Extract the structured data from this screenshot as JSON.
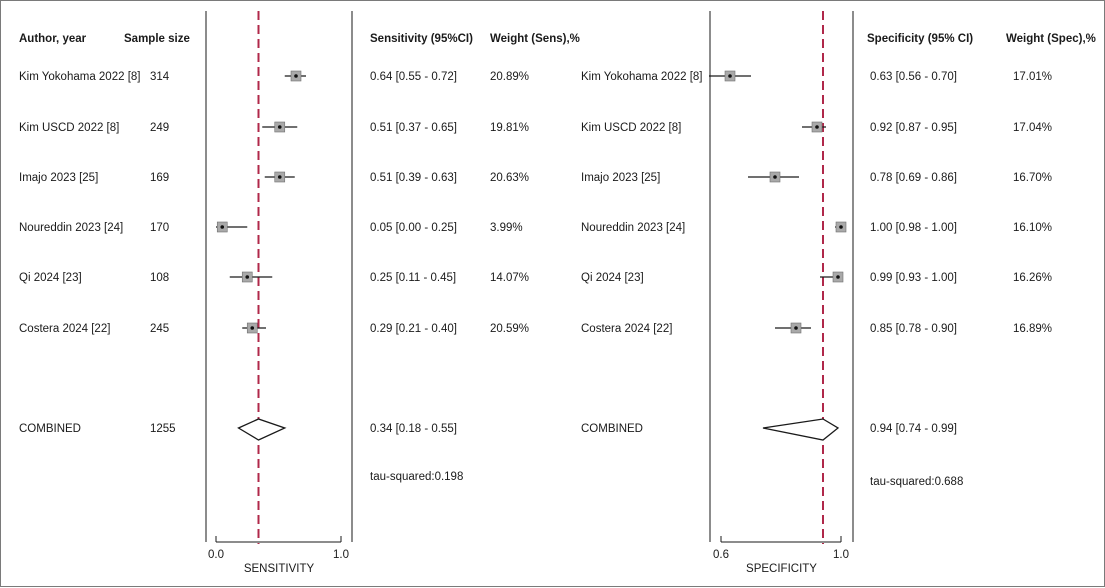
{
  "chart_data": [
    {
      "type": "forest",
      "metric": "sensitivity",
      "xlabel": "SENSITIVITY",
      "xticks": [
        "0.0",
        "1.0"
      ],
      "xlim": [
        0.0,
        1.0
      ],
      "reference_line": 0.34,
      "headers": {
        "author": "Author, year",
        "sample": "Sample size",
        "estimate": "Sensitivity (95%CI)",
        "weight": "Weight (Sens),%"
      },
      "studies": [
        {
          "author": "Kim Yokohama 2022 [8]",
          "n": "314",
          "est": 0.64,
          "lo": 0.55,
          "hi": 0.72,
          "label": "0.64 [0.55 - 0.72]",
          "weight": "20.89%"
        },
        {
          "author": "Kim USCD 2022 [8]",
          "n": "249",
          "est": 0.51,
          "lo": 0.37,
          "hi": 0.65,
          "label": "0.51 [0.37 - 0.65]",
          "weight": "19.81%"
        },
        {
          "author": "Imajo 2023 [25]",
          "n": "169",
          "est": 0.51,
          "lo": 0.39,
          "hi": 0.63,
          "label": "0.51 [0.39 - 0.63]",
          "weight": "20.63%"
        },
        {
          "author": "Noureddin 2023 [24]",
          "n": "170",
          "est": 0.05,
          "lo": 0.0,
          "hi": 0.25,
          "label": "0.05 [0.00 - 0.25]",
          "weight": "3.99%"
        },
        {
          "author": "Qi 2024 [23]",
          "n": "108",
          "est": 0.25,
          "lo": 0.11,
          "hi": 0.45,
          "label": "0.25 [0.11 - 0.45]",
          "weight": "14.07%"
        },
        {
          "author": "Costera 2024 [22]",
          "n": "245",
          "est": 0.29,
          "lo": 0.21,
          "hi": 0.4,
          "label": "0.29 [0.21 - 0.40]",
          "weight": "20.59%"
        }
      ],
      "combined": {
        "author": "COMBINED",
        "n": "1255",
        "est": 0.34,
        "lo": 0.18,
        "hi": 0.55,
        "label": "0.34 [0.18 - 0.55]"
      },
      "heterogeneity": "tau-squared:0.198"
    },
    {
      "type": "forest",
      "metric": "specificity",
      "xlabel": "SPECIFICITY",
      "xticks": [
        "0.6",
        "1.0"
      ],
      "xlim": [
        0.6,
        1.0
      ],
      "reference_line": 0.94,
      "headers": {
        "estimate": "Specificity (95% CI)",
        "weight": "Weight (Spec),%"
      },
      "studies": [
        {
          "author": "Kim Yokohama 2022 [8]",
          "est": 0.63,
          "lo": 0.56,
          "hi": 0.7,
          "label": "0.63 [0.56 - 0.70]",
          "weight": "17.01%"
        },
        {
          "author": "Kim USCD 2022 [8]",
          "est": 0.92,
          "lo": 0.87,
          "hi": 0.95,
          "label": "0.92 [0.87 - 0.95]",
          "weight": "17.04%"
        },
        {
          "author": "Imajo 2023 [25]",
          "est": 0.78,
          "lo": 0.69,
          "hi": 0.86,
          "label": "0.78 [0.69 - 0.86]",
          "weight": "16.70%"
        },
        {
          "author": "Noureddin 2023 [24]",
          "est": 1.0,
          "lo": 0.98,
          "hi": 1.0,
          "label": "1.00 [0.98 - 1.00]",
          "weight": "16.10%"
        },
        {
          "author": "Qi 2024 [23]",
          "est": 0.99,
          "lo": 0.93,
          "hi": 1.0,
          "label": "0.99 [0.93 - 1.00]",
          "weight": "16.26%"
        },
        {
          "author": "Costera 2024 [22]",
          "est": 0.85,
          "lo": 0.78,
          "hi": 0.9,
          "label": "0.85 [0.78 - 0.90]",
          "weight": "16.89%"
        }
      ],
      "combined": {
        "author": "COMBINED",
        "est": 0.94,
        "lo": 0.74,
        "hi": 0.99,
        "label": "0.94 [0.74 - 0.99]"
      },
      "heterogeneity": "tau-squared:0.688"
    }
  ],
  "colors": {
    "reference_line": "#b0284a",
    "box_fill": "#a9a9a9",
    "line": "#1a1a1a"
  }
}
